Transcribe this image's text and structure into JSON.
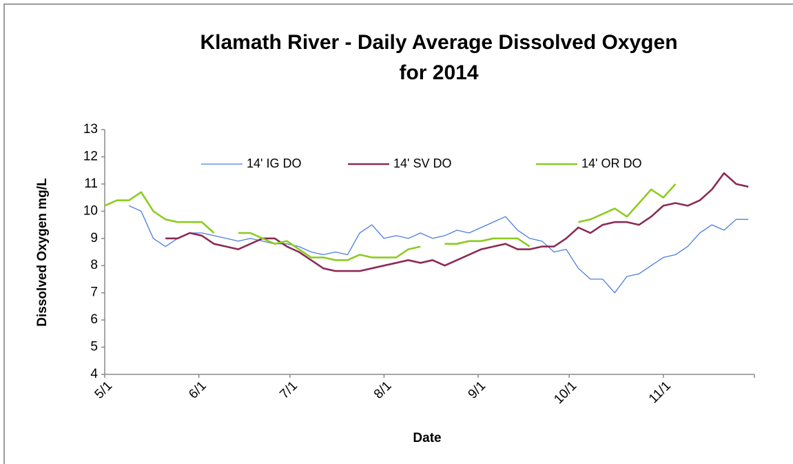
{
  "chart_data": {
    "type": "line",
    "title": [
      "Klamath River - Daily Average Dissolved Oxygen",
      "for 2014"
    ],
    "xlabel": "Date",
    "ylabel": "Dissolved Oxygen mg/L",
    "x": [
      "5/1",
      "5/5",
      "5/9",
      "5/13",
      "5/17",
      "5/21",
      "5/25",
      "5/29",
      "6/2",
      "6/6",
      "6/10",
      "6/14",
      "6/18",
      "6/22",
      "6/26",
      "6/30",
      "7/4",
      "7/8",
      "7/12",
      "7/16",
      "7/20",
      "7/24",
      "7/28",
      "8/1",
      "8/5",
      "8/9",
      "8/13",
      "8/17",
      "8/21",
      "8/25",
      "8/29",
      "9/2",
      "9/6",
      "9/10",
      "9/14",
      "9/18",
      "9/22",
      "9/26",
      "9/30",
      "10/4",
      "10/8",
      "10/12",
      "10/16",
      "10/20",
      "10/24",
      "10/28",
      "11/1",
      "11/5",
      "11/9",
      "11/13",
      "11/17",
      "11/21",
      "11/25",
      "11/29"
    ],
    "series": [
      {
        "name": "14' IG DO",
        "color": "#4a7ee0",
        "width": 1.3,
        "values": [
          null,
          null,
          10.2,
          10.0,
          9.0,
          8.7,
          9.0,
          9.2,
          9.2,
          9.1,
          9.0,
          8.9,
          9.0,
          8.9,
          8.8,
          8.8,
          8.7,
          8.5,
          8.4,
          8.5,
          8.4,
          9.2,
          9.5,
          9.0,
          9.1,
          9.0,
          9.2,
          9.0,
          9.1,
          9.3,
          9.2,
          9.4,
          9.6,
          9.8,
          9.3,
          9.0,
          8.9,
          8.5,
          8.6,
          7.9,
          7.5,
          7.5,
          7.0,
          7.6,
          7.7,
          8.0,
          8.3,
          8.4,
          8.7,
          9.2,
          9.5,
          9.3,
          9.7,
          9.7
        ]
      },
      {
        "name": "14' SV DO",
        "color": "#8b2a55",
        "width": 2.6,
        "values": [
          null,
          null,
          null,
          null,
          null,
          9.0,
          9.0,
          9.2,
          9.1,
          8.8,
          8.7,
          8.6,
          8.8,
          9.0,
          9.0,
          8.7,
          8.5,
          8.2,
          7.9,
          7.8,
          7.8,
          7.8,
          7.9,
          8.0,
          8.1,
          8.2,
          8.1,
          8.2,
          8.0,
          8.2,
          8.4,
          8.6,
          8.7,
          8.8,
          8.6,
          8.6,
          8.7,
          8.7,
          9.0,
          9.4,
          9.2,
          9.5,
          9.6,
          9.6,
          9.5,
          9.8,
          10.2,
          10.3,
          10.2,
          10.4,
          10.8,
          11.4,
          11.0,
          10.9
        ]
      },
      {
        "name": "14' OR DO",
        "color": "#8ccc1e",
        "width": 2.6,
        "values": [
          10.2,
          10.4,
          10.4,
          10.7,
          10.0,
          9.7,
          9.6,
          9.6,
          9.6,
          9.2,
          null,
          9.2,
          9.2,
          9.0,
          8.8,
          8.9,
          8.6,
          8.3,
          8.3,
          8.2,
          8.2,
          8.4,
          8.3,
          8.3,
          8.3,
          8.6,
          8.7,
          null,
          8.8,
          8.8,
          8.9,
          8.9,
          9.0,
          9.0,
          9.0,
          8.7,
          null,
          null,
          null,
          9.6,
          9.7,
          9.9,
          10.1,
          9.8,
          10.3,
          10.8,
          10.5,
          11.0,
          null,
          null,
          null,
          null,
          null,
          null
        ]
      }
    ],
    "xlim": [
      "5/1",
      "12/1"
    ],
    "xticks": [
      "5/1",
      "6/1",
      "7/1",
      "8/1",
      "9/1",
      "10/1",
      "11/1"
    ],
    "ylim": [
      4,
      13
    ],
    "yticks": [
      4,
      5,
      6,
      7,
      8,
      9,
      10,
      11,
      12,
      13
    ],
    "legend": "top"
  }
}
